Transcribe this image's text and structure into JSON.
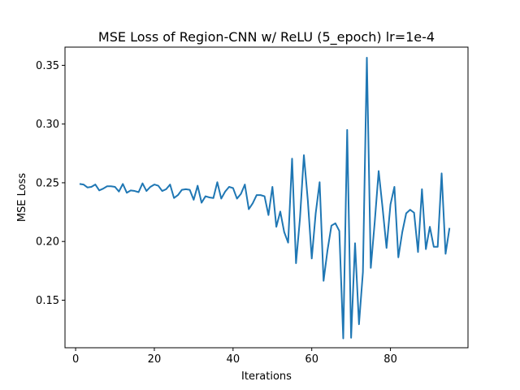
{
  "chart_data": {
    "type": "line",
    "title": "MSE Loss of Region-CNN w/ ReLU (5_epoch) lr=1e-4",
    "xlabel": "Iterations",
    "ylabel": "MSE Loss",
    "xlim": [
      -2.7,
      99.7
    ],
    "ylim": [
      0.1095,
      0.3655
    ],
    "xticks": [
      0,
      20,
      40,
      60,
      80
    ],
    "yticks": [
      0.15,
      0.2,
      0.25,
      0.3,
      0.35
    ],
    "ytick_labels": [
      "0.15",
      "0.20",
      "0.25",
      "0.30",
      "0.35"
    ],
    "grid": false,
    "line_color": "#1f77b4",
    "series": [
      {
        "x": [
          1,
          2,
          3,
          4,
          5,
          6,
          7,
          8,
          9,
          10,
          11,
          12,
          13,
          14,
          15,
          16,
          17,
          18,
          19,
          20,
          21,
          22,
          23,
          24,
          25,
          26,
          27,
          28,
          29,
          30,
          31,
          32,
          33,
          34,
          35,
          36,
          37,
          38,
          39,
          40,
          41,
          42,
          43,
          44,
          45,
          46,
          47,
          48,
          49,
          50,
          51,
          52,
          53,
          54,
          55,
          56,
          57,
          58,
          59,
          60,
          61,
          62,
          63,
          64,
          65,
          66,
          67,
          68,
          69,
          70,
          71,
          72,
          73,
          74,
          75,
          76,
          77,
          78,
          79,
          80,
          81,
          82,
          83,
          84,
          85,
          86,
          87,
          88,
          89,
          90,
          91,
          92,
          93,
          94,
          95
        ],
        "values": [
          0.249,
          0.2485,
          0.246,
          0.2465,
          0.2485,
          0.2435,
          0.245,
          0.247,
          0.247,
          0.2465,
          0.2425,
          0.249,
          0.2415,
          0.2435,
          0.243,
          0.242,
          0.2495,
          0.243,
          0.2465,
          0.2485,
          0.2475,
          0.243,
          0.2445,
          0.2485,
          0.237,
          0.2395,
          0.244,
          0.2445,
          0.244,
          0.2355,
          0.2475,
          0.233,
          0.2385,
          0.2375,
          0.237,
          0.2505,
          0.2365,
          0.2425,
          0.2465,
          0.2455,
          0.2365,
          0.2405,
          0.2485,
          0.2275,
          0.2325,
          0.2395,
          0.2395,
          0.2385,
          0.2225,
          0.2465,
          0.2125,
          0.2255,
          0.208,
          0.199,
          0.2705,
          0.1815,
          0.2195,
          0.2735,
          0.235,
          0.1855,
          0.224,
          0.2505,
          0.1665,
          0.1925,
          0.2135,
          0.2155,
          0.209,
          0.1175,
          0.295,
          0.118,
          0.1985,
          0.1295,
          0.174,
          0.3565,
          0.1775,
          0.2165,
          0.26,
          0.2285,
          0.1945,
          0.2315,
          0.2465,
          0.1865,
          0.208,
          0.224,
          0.227,
          0.2245,
          0.191,
          0.2445,
          0.1935,
          0.2125,
          0.1955,
          0.1955,
          0.258,
          0.1895,
          0.2115
        ]
      }
    ]
  }
}
